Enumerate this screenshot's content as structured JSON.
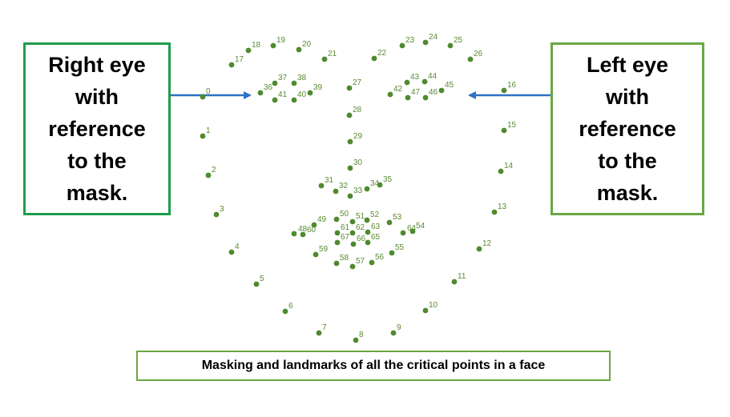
{
  "right_eye_box": {
    "text": "Right  eye\nwith\nreference\nto the\nmask."
  },
  "left_eye_box": {
    "text": "Left  eye\nwith\nreference\nto the\nmask."
  },
  "caption": {
    "text": "Masking and landmarks of all the critical points in a face"
  },
  "colors": {
    "landmark": "#4e8a2e",
    "label_text": "#5a8a33",
    "arrow": "#2d72c4",
    "right_box_border": "#1e9d4b",
    "left_box_border": "#6aa842",
    "caption_border": "#6aa842"
  },
  "landmark_labels": [
    "0",
    "1",
    "2",
    "3",
    "4",
    "5",
    "6",
    "7",
    "8",
    "9",
    "10",
    "11",
    "12",
    "13",
    "14",
    "15",
    "16",
    "17",
    "18",
    "19",
    "20",
    "21",
    "22",
    "23",
    "24",
    "25",
    "26",
    "27",
    "28",
    "29",
    "30",
    "31",
    "32",
    "33",
    "34",
    "35",
    "36",
    "37",
    "38",
    "39",
    "40",
    "41",
    "42",
    "43",
    "44",
    "45",
    "46",
    "47",
    "48",
    "49",
    "50",
    "51",
    "52",
    "53",
    "54",
    "55",
    "56",
    "57",
    "58",
    "59",
    "60",
    "61",
    "62",
    "63",
    "64",
    "65",
    "66",
    "67"
  ]
}
